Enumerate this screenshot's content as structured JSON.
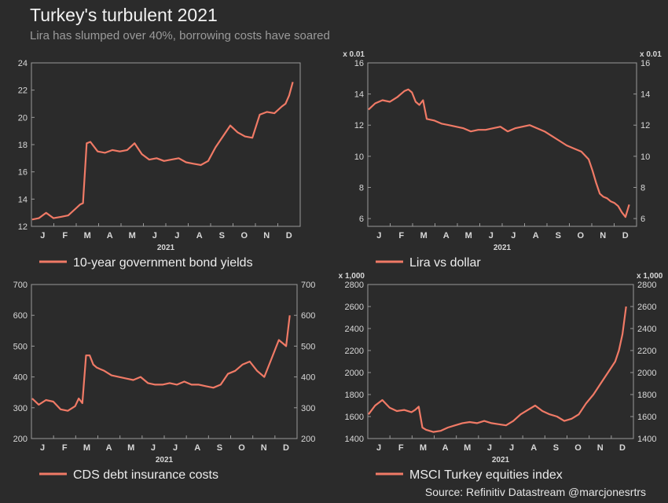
{
  "header": {
    "title": "Turkey's turbulent 2021",
    "subtitle": "Lira has slumped over 40%, borrowing costs have soared"
  },
  "footer": {
    "source": "Source: Refinitiv Datastream @marcjonesrtrs"
  },
  "colors": {
    "line": "#f07a66",
    "background": "#2b2b2b",
    "plot_border": "#9a9a9a",
    "text": "#d8d8d8"
  },
  "chart_data": [
    {
      "id": "bond",
      "type": "line",
      "legend": "10-year government bond yields",
      "xlabel": "2021",
      "months": [
        "J",
        "F",
        "M",
        "A",
        "M",
        "J",
        "J",
        "A",
        "S",
        "O",
        "N",
        "D"
      ],
      "ylim": [
        12,
        24
      ],
      "yticks": [
        12,
        14,
        16,
        18,
        20,
        22,
        24
      ],
      "ytick_labels": [
        "12",
        "14",
        "16",
        "18",
        "20",
        "22",
        "24"
      ],
      "axes": "left",
      "scale_label": "",
      "series": [
        {
          "x": [
            1,
            10,
            20,
            30,
            40,
            50,
            60,
            66,
            70,
            75,
            80,
            90,
            100,
            110,
            120,
            130,
            140,
            150,
            160,
            170,
            180,
            190,
            200,
            210,
            220,
            230,
            240,
            250,
            260,
            270,
            280,
            290,
            300,
            310,
            320,
            330,
            340,
            345,
            350,
            355
          ],
          "values": [
            12.5,
            12.6,
            13.0,
            12.6,
            12.7,
            12.8,
            13.3,
            13.6,
            13.7,
            18.1,
            18.2,
            17.5,
            17.4,
            17.6,
            17.5,
            17.6,
            18.1,
            17.3,
            16.9,
            17.0,
            16.8,
            16.9,
            17.0,
            16.7,
            16.6,
            16.5,
            16.8,
            17.8,
            18.6,
            19.4,
            18.9,
            18.6,
            18.5,
            20.2,
            20.4,
            20.3,
            20.8,
            21.0,
            21.6,
            22.6
          ]
        }
      ]
    },
    {
      "id": "lira",
      "type": "line",
      "legend": "Lira vs dollar",
      "xlabel": "2021",
      "months": [
        "J",
        "F",
        "M",
        "A",
        "M",
        "J",
        "J",
        "A",
        "S",
        "O",
        "N",
        "D"
      ],
      "ylim": [
        5.5,
        16
      ],
      "yticks": [
        6,
        8,
        10,
        12,
        14,
        16
      ],
      "ytick_labels": [
        "6",
        "8",
        "10",
        "12",
        "14",
        "16"
      ],
      "axes": "both",
      "scale_label": "x 0.01",
      "series": [
        {
          "x": [
            1,
            10,
            20,
            30,
            40,
            50,
            55,
            60,
            65,
            70,
            75,
            80,
            90,
            100,
            110,
            120,
            130,
            140,
            150,
            160,
            170,
            180,
            190,
            200,
            210,
            220,
            230,
            240,
            250,
            260,
            270,
            280,
            290,
            300,
            305,
            310,
            315,
            320,
            325,
            330,
            335,
            340,
            345,
            350,
            355
          ],
          "values": [
            13.0,
            13.4,
            13.6,
            13.5,
            13.8,
            14.2,
            14.3,
            14.1,
            13.5,
            13.3,
            13.6,
            12.4,
            12.3,
            12.1,
            12.0,
            11.9,
            11.8,
            11.6,
            11.7,
            11.7,
            11.8,
            11.9,
            11.6,
            11.8,
            11.9,
            12.0,
            11.8,
            11.6,
            11.3,
            11.0,
            10.7,
            10.5,
            10.3,
            9.8,
            9.1,
            8.3,
            7.6,
            7.4,
            7.3,
            7.1,
            7.0,
            6.8,
            6.4,
            6.1,
            6.9
          ]
        }
      ]
    },
    {
      "id": "cds",
      "type": "line",
      "legend": "CDS debt insurance costs",
      "xlabel": "2021",
      "months": [
        "J",
        "F",
        "M",
        "A",
        "M",
        "J",
        "J",
        "A",
        "S",
        "O",
        "N",
        "D"
      ],
      "ylim": [
        200,
        700
      ],
      "yticks": [
        200,
        300,
        400,
        500,
        600,
        700
      ],
      "ytick_labels": [
        "200",
        "300",
        "400",
        "500",
        "600",
        "700"
      ],
      "axes": "both",
      "scale_label": "",
      "series": [
        {
          "x": [
            1,
            10,
            20,
            30,
            40,
            50,
            60,
            65,
            70,
            75,
            80,
            85,
            90,
            100,
            110,
            120,
            130,
            140,
            150,
            160,
            170,
            180,
            190,
            200,
            210,
            220,
            230,
            240,
            250,
            260,
            270,
            280,
            290,
            300,
            310,
            320,
            330,
            340,
            345,
            350,
            355
          ],
          "values": [
            330,
            310,
            325,
            320,
            295,
            290,
            305,
            330,
            315,
            470,
            470,
            440,
            430,
            420,
            405,
            400,
            395,
            390,
            400,
            380,
            375,
            375,
            380,
            375,
            385,
            375,
            375,
            370,
            365,
            375,
            410,
            420,
            440,
            450,
            420,
            400,
            460,
            520,
            510,
            500,
            600
          ]
        }
      ]
    },
    {
      "id": "msci",
      "type": "line",
      "legend": "MSCI Turkey equities index",
      "xlabel": "2021",
      "months": [
        "J",
        "F",
        "M",
        "A",
        "M",
        "J",
        "J",
        "A",
        "S",
        "O",
        "N",
        "D"
      ],
      "ylim": [
        1400,
        2800
      ],
      "yticks": [
        1400,
        1600,
        1800,
        2000,
        2200,
        2400,
        2600,
        2800
      ],
      "ytick_labels": [
        "1400",
        "1600",
        "1800",
        "2000",
        "2200",
        "2400",
        "2600",
        "2800"
      ],
      "axes": "both",
      "scale_label": "x 1,000",
      "series": [
        {
          "x": [
            1,
            10,
            20,
            30,
            40,
            50,
            60,
            65,
            70,
            75,
            80,
            90,
            100,
            110,
            120,
            130,
            140,
            150,
            160,
            170,
            180,
            190,
            200,
            210,
            220,
            230,
            240,
            250,
            260,
            270,
            280,
            290,
            300,
            310,
            320,
            330,
            340,
            345,
            350,
            355
          ],
          "values": [
            1620,
            1700,
            1750,
            1680,
            1650,
            1660,
            1640,
            1660,
            1690,
            1500,
            1480,
            1460,
            1470,
            1500,
            1520,
            1540,
            1550,
            1540,
            1560,
            1540,
            1530,
            1520,
            1560,
            1620,
            1660,
            1700,
            1650,
            1620,
            1600,
            1560,
            1580,
            1620,
            1720,
            1800,
            1900,
            2000,
            2100,
            2200,
            2350,
            2600
          ]
        }
      ]
    }
  ]
}
